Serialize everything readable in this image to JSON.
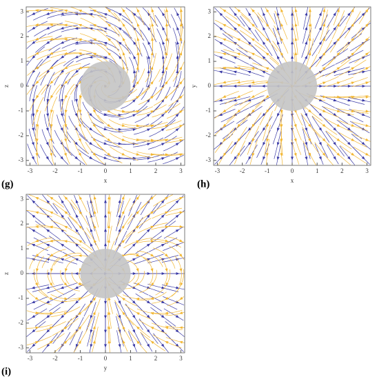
{
  "chart_data": [
    {
      "type": "streamplot",
      "panel_label": "(g)",
      "xlabel": "x",
      "ylabel": "z",
      "field": "swirl",
      "xlim": [
        -3.15,
        3.15
      ],
      "ylim": [
        -3.2,
        3.2
      ],
      "xticks": [
        -3,
        -2,
        -1,
        0,
        1,
        2,
        3
      ],
      "yticks": [
        -3,
        -2,
        -1,
        0,
        1,
        2,
        3
      ],
      "colors": [
        "#3b3ba6",
        "#f2b632"
      ],
      "sphere_radius": 1,
      "sphere_color": "#c4c4c4"
    },
    {
      "type": "streamplot",
      "panel_label": "(h)",
      "xlabel": "x",
      "ylabel": "y",
      "field": "radial",
      "xlim": [
        -3.15,
        3.15
      ],
      "ylim": [
        -3.2,
        3.2
      ],
      "xticks": [
        -3,
        -2,
        -1,
        0,
        1,
        2,
        3
      ],
      "yticks": [
        -3,
        -2,
        -1,
        0,
        1,
        2,
        3
      ],
      "colors": [
        "#3b3ba6",
        "#f2b632"
      ],
      "sphere_radius": 1,
      "sphere_color": "#c4c4c4"
    },
    {
      "type": "streamplot",
      "panel_label": "(i)",
      "xlabel": "y",
      "ylabel": "z",
      "field": "dipole",
      "xlim": [
        -3.15,
        3.15
      ],
      "ylim": [
        -3.2,
        3.2
      ],
      "xticks": [
        -3,
        -2,
        -1,
        0,
        1,
        2,
        3
      ],
      "yticks": [
        -3,
        -2,
        -1,
        0,
        1,
        2,
        3
      ],
      "colors": [
        "#3b3ba6",
        "#f2b632"
      ],
      "sphere_radius": 1,
      "sphere_color": "#c4c4c4"
    }
  ]
}
